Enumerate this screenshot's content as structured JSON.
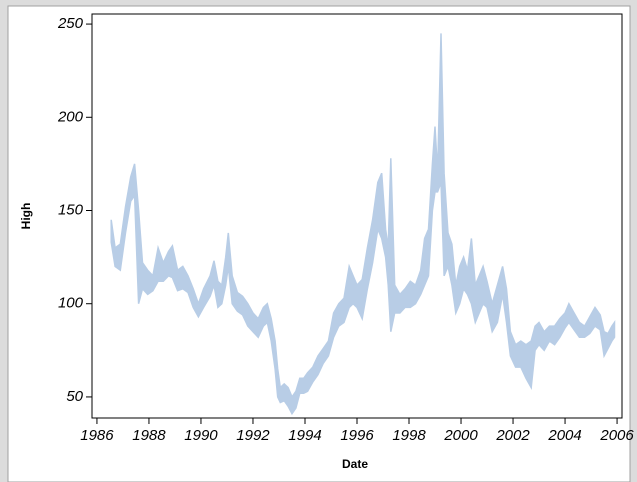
{
  "chart_data": {
    "type": "band",
    "x_label": "Date",
    "y_label": "High",
    "x": [
      1986.55,
      1986.7,
      1986.9,
      1987.1,
      1987.3,
      1987.45,
      1987.6,
      1987.75,
      1987.95,
      1988.15,
      1988.35,
      1988.55,
      1988.75,
      1988.9,
      1989.1,
      1989.3,
      1989.5,
      1989.7,
      1989.9,
      1990.1,
      1990.35,
      1990.5,
      1990.65,
      1990.8,
      1990.95,
      1991.05,
      1991.2,
      1991.4,
      1991.6,
      1991.8,
      1992.0,
      1992.2,
      1992.4,
      1992.55,
      1992.7,
      1992.85,
      1992.95,
      1993.05,
      1993.2,
      1993.35,
      1993.5,
      1993.65,
      1993.8,
      1993.95,
      1994.1,
      1994.3,
      1994.5,
      1994.7,
      1994.9,
      1995.1,
      1995.3,
      1995.5,
      1995.7,
      1995.85,
      1996.0,
      1996.2,
      1996.4,
      1996.6,
      1996.8,
      1996.95,
      1997.1,
      1997.2,
      1997.3,
      1997.45,
      1997.65,
      1997.85,
      1998.05,
      1998.25,
      1998.45,
      1998.6,
      1998.75,
      1998.9,
      1999.0,
      1999.1,
      1999.23,
      1999.35,
      1999.5,
      1999.65,
      1999.8,
      1999.95,
      2000.1,
      2000.25,
      2000.4,
      2000.55,
      2000.7,
      2000.85,
      2001.0,
      2001.2,
      2001.4,
      2001.6,
      2001.75,
      2001.9,
      2002.1,
      2002.3,
      2002.5,
      2002.7,
      2002.85,
      2003.0,
      2003.2,
      2003.4,
      2003.6,
      2003.8,
      2004.0,
      2004.15,
      2004.35,
      2004.55,
      2004.75,
      2004.95,
      2005.15,
      2005.35,
      2005.5,
      2005.65,
      2005.8,
      2005.9
    ],
    "series": [
      {
        "color": "#b8cde6",
        "values": [
          145,
          130,
          132,
          152,
          168,
          175,
          150,
          122,
          118,
          115,
          130,
          122,
          128,
          131,
          118,
          120,
          115,
          108,
          100,
          108,
          115,
          123,
          112,
          110,
          125,
          138,
          115,
          106,
          104,
          100,
          95,
          92,
          98,
          100,
          92,
          80,
          65,
          55,
          57,
          55,
          50,
          53,
          60,
          60,
          63,
          66,
          72,
          76,
          80,
          95,
          100,
          103,
          120,
          115,
          110,
          113,
          130,
          145,
          165,
          170,
          140,
          130,
          178,
          110,
          105,
          108,
          112,
          110,
          118,
          135,
          140,
          175,
          195,
          170,
          245,
          170,
          138,
          132,
          110,
          120,
          125,
          118,
          135,
          110,
          115,
          120,
          112,
          100,
          110,
          120,
          108,
          85,
          78,
          80,
          78,
          80,
          88,
          90,
          85,
          88,
          88,
          92,
          95,
          100,
          95,
          90,
          88,
          93,
          98,
          94,
          85,
          84,
          88,
          90
        ],
        "low": [
          133,
          120,
          118,
          138,
          155,
          158,
          100,
          108,
          105,
          107,
          112,
          112,
          115,
          114,
          107,
          108,
          106,
          98,
          93,
          98,
          104,
          110,
          98,
          100,
          110,
          120,
          100,
          96,
          94,
          88,
          85,
          82,
          88,
          90,
          80,
          65,
          50,
          47,
          48,
          45,
          41,
          44,
          52,
          52,
          53,
          58,
          62,
          68,
          72,
          82,
          88,
          90,
          98,
          100,
          98,
          92,
          108,
          122,
          140,
          135,
          125,
          110,
          85,
          95,
          95,
          98,
          98,
          100,
          105,
          110,
          115,
          150,
          160,
          160,
          165,
          115,
          120,
          110,
          95,
          100,
          108,
          105,
          100,
          90,
          95,
          100,
          98,
          85,
          90,
          105,
          90,
          72,
          66,
          66,
          60,
          55,
          75,
          78,
          75,
          80,
          78,
          82,
          87,
          90,
          86,
          82,
          82,
          84,
          88,
          86,
          72,
          76,
          80,
          82
        ]
      }
    ],
    "xlim": [
      1985.81,
      2006.19
    ],
    "xticks": [
      1986,
      1988,
      1990,
      1992,
      1994,
      1996,
      1998,
      2000,
      2002,
      2004,
      2006
    ],
    "ylim": [
      38.7,
      255.4
    ],
    "yticks": [
      50,
      100,
      150,
      200,
      250
    ]
  }
}
